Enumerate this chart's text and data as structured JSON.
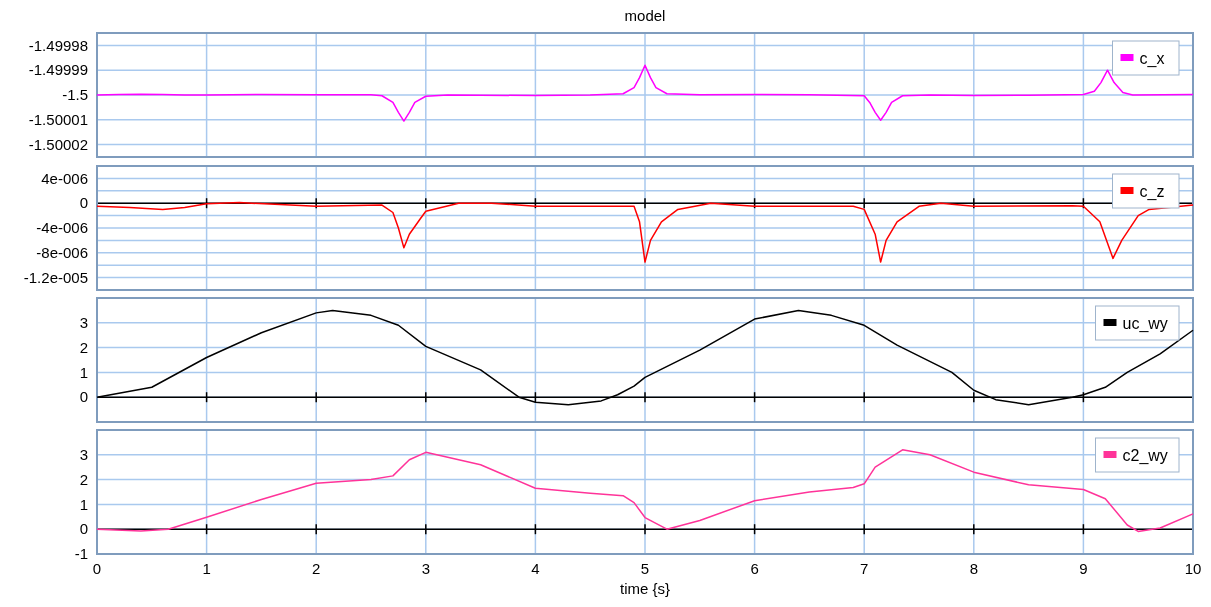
{
  "chart_data": [
    {
      "type": "line",
      "title": "model",
      "xlim": [
        0,
        10
      ],
      "xticks": [
        0,
        1,
        2,
        3,
        4,
        5,
        6,
        7,
        8,
        9,
        10
      ],
      "ylim": [
        -1.500025,
        -1.499975
      ],
      "yticks": [
        -1.49998,
        -1.49999,
        -1.5,
        -1.50001,
        -1.50002
      ],
      "grid": true,
      "legend": "top right",
      "tick_labels": "y",
      "series": [
        {
          "name": "c_x",
          "color": "#ff00ff",
          "x": [
            0,
            0.2,
            0.4,
            0.6,
            0.8,
            1,
            1.5,
            2,
            2.5,
            2.6,
            2.7,
            2.75,
            2.8,
            2.85,
            2.9,
            3,
            3.2,
            3.5,
            4,
            4.5,
            4.8,
            4.9,
            4.95,
            5,
            5.05,
            5.1,
            5.2,
            5.5,
            6,
            6.5,
            7,
            7.05,
            7.1,
            7.15,
            7.2,
            7.25,
            7.35,
            7.6,
            8,
            8.5,
            9,
            9.1,
            9.16,
            9.22,
            9.28,
            9.36,
            9.45,
            10
          ],
          "values": [
            -1.5,
            -1.4999998,
            -1.4999997,
            -1.4999998,
            -1.5,
            -1.5,
            -1.4999998,
            -1.4999999,
            -1.4999999,
            -1.5000003,
            -1.500003,
            -1.500007,
            -1.5000105,
            -1.500007,
            -1.500003,
            -1.5000005,
            -1.5,
            -1.5000001,
            -1.5000002,
            -1.5,
            -1.4999995,
            -1.499997,
            -1.499993,
            -1.499988,
            -1.499993,
            -1.499997,
            -1.4999995,
            -1.4999999,
            -1.4999998,
            -1.4999999,
            -1.5000003,
            -1.500003,
            -1.500007,
            -1.5000102,
            -1.500007,
            -1.500003,
            -1.5000003,
            -1.5,
            -1.5000002,
            -1.5000001,
            -1.4999998,
            -1.4999985,
            -1.499995,
            -1.49999,
            -1.499995,
            -1.499999,
            -1.5,
            -1.4999998
          ]
        }
      ]
    },
    {
      "type": "line",
      "xlim": [
        0,
        10
      ],
      "xticks": [
        0,
        1,
        2,
        3,
        4,
        5,
        6,
        7,
        8,
        9,
        10
      ],
      "ylim": [
        -1.4e-05,
        6e-06
      ],
      "yticks": [
        {
          "value": 4e-06,
          "label": "4e-006"
        },
        {
          "value": 2e-06,
          "label": null
        },
        {
          "value": 0,
          "label": "0"
        },
        {
          "value": -2e-06,
          "label": null
        },
        {
          "value": -4e-06,
          "label": "-4e-006"
        },
        {
          "value": -6e-06,
          "label": null
        },
        {
          "value": -8e-06,
          "label": "-8e-006"
        },
        {
          "value": -1e-05,
          "label": null
        },
        {
          "value": -1.2e-05,
          "label": "-1.2e-005"
        }
      ],
      "grid": true,
      "legend": "top right",
      "tick_labels": "y",
      "series": [
        {
          "name": "c_z",
          "color": "#ff0000",
          "x": [
            0,
            0.3,
            0.6,
            0.8,
            1,
            1.3,
            2,
            2.6,
            2.7,
            2.75,
            2.8,
            2.85,
            2.95,
            3,
            3.3,
            3.6,
            4,
            4.5,
            4.9,
            4.95,
            5,
            5.05,
            5.15,
            5.3,
            5.6,
            6,
            6.9,
            7,
            7.1,
            7.15,
            7.2,
            7.3,
            7.5,
            7.7,
            8,
            8.9,
            9,
            9.15,
            9.27,
            9.35,
            9.5,
            9.6,
            10
          ],
          "values": [
            -5e-07,
            -7e-07,
            -1e-06,
            -7e-07,
            -1e-07,
            1e-07,
            -5e-07,
            -3e-07,
            -1.5e-06,
            -4e-06,
            -7.2e-06,
            -5e-06,
            -2.5e-06,
            -1.3e-06,
            0,
            0,
            -5e-07,
            -5e-07,
            -5e-07,
            -3e-06,
            -9.5e-06,
            -6e-06,
            -3e-06,
            -1e-06,
            0,
            -5e-07,
            -5e-07,
            -1e-06,
            -5e-06,
            -9.5e-06,
            -6e-06,
            -3e-06,
            -5e-07,
            0,
            -5e-07,
            -4e-07,
            -5e-07,
            -3e-06,
            -8.9e-06,
            -6e-06,
            -2e-06,
            -1e-06,
            -3e-07
          ]
        }
      ]
    },
    {
      "type": "line",
      "xlim": [
        0,
        10
      ],
      "xticks": [
        0,
        1,
        2,
        3,
        4,
        5,
        6,
        7,
        8,
        9,
        10
      ],
      "ylim": [
        -1,
        4
      ],
      "yticks": [
        3,
        2,
        1,
        0
      ],
      "grid": true,
      "legend": "top right",
      "tick_labels": "y",
      "series": [
        {
          "name": "uc_wy",
          "color": "#000000",
          "x": [
            0,
            0.5,
            1,
            1.5,
            2,
            2.15,
            2.5,
            2.75,
            3,
            3.5,
            3.85,
            4,
            4.3,
            4.6,
            4.75,
            4.9,
            5,
            5.5,
            6,
            6.4,
            6.7,
            7,
            7.3,
            7.8,
            8,
            8.2,
            8.5,
            8.9,
            9,
            9.2,
            9.4,
            9.7,
            10
          ],
          "values": [
            0,
            0.4,
            1.6,
            2.6,
            3.4,
            3.5,
            3.3,
            2.9,
            2.05,
            1.1,
            0,
            -0.2,
            -0.3,
            -0.15,
            0.1,
            0.45,
            0.8,
            1.9,
            3.15,
            3.5,
            3.3,
            2.9,
            2.1,
            1,
            0.28,
            -0.1,
            -0.3,
            0,
            0.1,
            0.4,
            1,
            1.75,
            2.7
          ]
        }
      ]
    },
    {
      "type": "line",
      "xlabel": "time {s}",
      "xlim": [
        0,
        10
      ],
      "xticks": [
        0,
        1,
        2,
        3,
        4,
        5,
        6,
        7,
        8,
        9,
        10
      ],
      "ylim": [
        -1,
        4
      ],
      "yticks": [
        3,
        2,
        1,
        0,
        -1
      ],
      "grid": true,
      "legend": "top right",
      "series": [
        {
          "name": "c2_wy",
          "color": "#ff3399",
          "x": [
            0,
            0.4,
            0.65,
            1,
            1.5,
            2,
            2.5,
            2.7,
            2.85,
            3,
            3.5,
            4,
            4.5,
            4.8,
            4.9,
            5,
            5.2,
            5.5,
            6,
            6.5,
            6.9,
            7,
            7.1,
            7.35,
            7.6,
            8,
            8.5,
            9,
            9.2,
            9.4,
            9.5,
            9.7,
            10
          ],
          "values": [
            0,
            -0.07,
            0,
            0.48,
            1.2,
            1.85,
            2,
            2.15,
            2.8,
            3.1,
            2.6,
            1.65,
            1.45,
            1.35,
            1.07,
            0.47,
            0,
            0.35,
            1.15,
            1.5,
            1.68,
            1.83,
            2.5,
            3.2,
            3,
            2.3,
            1.79,
            1.6,
            1.23,
            0.17,
            -0.09,
            0.05,
            0.62
          ]
        }
      ]
    }
  ]
}
